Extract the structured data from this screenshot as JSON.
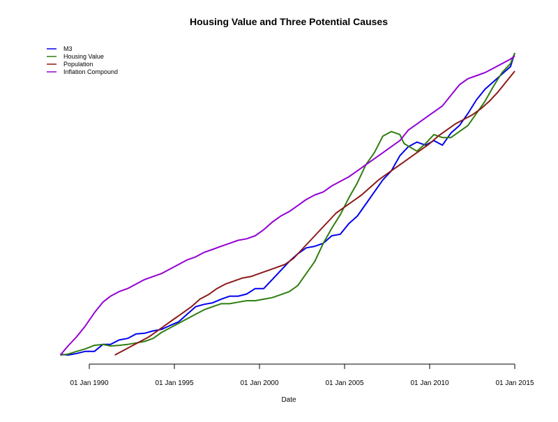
{
  "chart_data": {
    "type": "line",
    "title": "Housing Value and Three Potential Causes",
    "xlabel": "Date",
    "ylabel": "",
    "grid": false,
    "legend_position": "top-left",
    "x_ticks": [
      "01 Jan 1990",
      "01 Jan 1995",
      "01 Jan 2000",
      "01 Jan 2005",
      "01 Jan 2010",
      "01 Jan 2015"
    ],
    "x_tick_values": [
      1990.0,
      1995.0,
      2000.0,
      2005.0,
      2010.0,
      2015.0
    ],
    "xlim": [
      1988.3,
      2015.0
    ],
    "ylim": [
      0,
      100
    ],
    "y_axis_shown": false,
    "series": [
      {
        "name": "M3",
        "color": "#0000ee",
        "points": [
          [
            1988.3,
            0.3
          ],
          [
            1988.75,
            0.0
          ],
          [
            1989.25,
            0.5
          ],
          [
            1989.75,
            1.2
          ],
          [
            1990.3,
            1.2
          ],
          [
            1990.8,
            3.5
          ],
          [
            1991.25,
            3.5
          ],
          [
            1991.75,
            5.0
          ],
          [
            1992.25,
            5.5
          ],
          [
            1992.75,
            7.0
          ],
          [
            1993.25,
            7.2
          ],
          [
            1993.75,
            8.0
          ],
          [
            1994.25,
            8.5
          ],
          [
            1994.75,
            9.8
          ],
          [
            1995.25,
            11.0
          ],
          [
            1995.75,
            13.5
          ],
          [
            1996.25,
            16.0
          ],
          [
            1996.75,
            16.8
          ],
          [
            1997.25,
            17.3
          ],
          [
            1997.75,
            18.5
          ],
          [
            1998.25,
            19.5
          ],
          [
            1998.75,
            19.5
          ],
          [
            1999.25,
            20.2
          ],
          [
            1999.75,
            22.0
          ],
          [
            2000.25,
            22.0
          ],
          [
            2000.75,
            25.0
          ],
          [
            2001.25,
            28.0
          ],
          [
            2001.75,
            31.0
          ],
          [
            2002.25,
            33.5
          ],
          [
            2002.75,
            35.5
          ],
          [
            2003.25,
            36.0
          ],
          [
            2003.75,
            37.0
          ],
          [
            2004.25,
            39.5
          ],
          [
            2004.75,
            40.0
          ],
          [
            2005.25,
            43.5
          ],
          [
            2005.75,
            46.0
          ],
          [
            2006.25,
            50.0
          ],
          [
            2006.75,
            54.0
          ],
          [
            2007.25,
            58.0
          ],
          [
            2007.75,
            61.0
          ],
          [
            2008.25,
            66.0
          ],
          [
            2008.75,
            69.0
          ],
          [
            2009.25,
            70.5
          ],
          [
            2009.75,
            69.5
          ],
          [
            2010.25,
            71.0
          ],
          [
            2010.75,
            69.5
          ],
          [
            2011.25,
            73.5
          ],
          [
            2011.75,
            76.0
          ],
          [
            2012.25,
            80.0
          ],
          [
            2012.75,
            84.5
          ],
          [
            2013.25,
            88.0
          ],
          [
            2013.75,
            90.5
          ],
          [
            2014.25,
            93.0
          ],
          [
            2014.75,
            95.5
          ],
          [
            2015.0,
            100.0
          ]
        ]
      },
      {
        "name": "Housing Value",
        "color": "#2e7d0f",
        "points": [
          [
            1988.3,
            0.0
          ],
          [
            1988.75,
            0.3
          ],
          [
            1989.25,
            1.2
          ],
          [
            1989.75,
            2.0
          ],
          [
            1990.3,
            3.2
          ],
          [
            1990.8,
            3.5
          ],
          [
            1991.25,
            3.0
          ],
          [
            1991.75,
            3.2
          ],
          [
            1992.25,
            3.5
          ],
          [
            1992.75,
            4.0
          ],
          [
            1993.25,
            4.5
          ],
          [
            1993.75,
            5.5
          ],
          [
            1994.25,
            7.5
          ],
          [
            1994.75,
            9.0
          ],
          [
            1995.25,
            10.5
          ],
          [
            1995.75,
            12.0
          ],
          [
            1996.25,
            13.5
          ],
          [
            1996.75,
            15.0
          ],
          [
            1997.25,
            16.0
          ],
          [
            1997.75,
            17.0
          ],
          [
            1998.25,
            17.0
          ],
          [
            1998.75,
            17.5
          ],
          [
            1999.25,
            18.0
          ],
          [
            1999.75,
            18.0
          ],
          [
            2000.25,
            18.5
          ],
          [
            2000.75,
            19.0
          ],
          [
            2001.25,
            20.0
          ],
          [
            2001.75,
            21.0
          ],
          [
            2002.25,
            23.0
          ],
          [
            2002.75,
            27.0
          ],
          [
            2003.25,
            31.0
          ],
          [
            2003.75,
            37.0
          ],
          [
            2004.25,
            42.0
          ],
          [
            2004.75,
            46.5
          ],
          [
            2005.25,
            52.0
          ],
          [
            2005.75,
            57.0
          ],
          [
            2006.25,
            63.0
          ],
          [
            2006.75,
            67.0
          ],
          [
            2007.25,
            72.5
          ],
          [
            2007.75,
            74.0
          ],
          [
            2008.25,
            73.0
          ],
          [
            2008.5,
            70.0
          ],
          [
            2009.25,
            67.5
          ],
          [
            2009.75,
            70.0
          ],
          [
            2010.25,
            73.0
          ],
          [
            2010.75,
            72.0
          ],
          [
            2011.25,
            72.0
          ],
          [
            2011.75,
            74.0
          ],
          [
            2012.25,
            76.0
          ],
          [
            2012.75,
            80.0
          ],
          [
            2013.25,
            84.0
          ],
          [
            2013.75,
            89.0
          ],
          [
            2014.25,
            93.5
          ],
          [
            2014.75,
            96.5
          ],
          [
            2015.0,
            100.0
          ]
        ]
      },
      {
        "name": "Population",
        "color": "#8b1a1a",
        "points": [
          [
            1991.5,
            0.0
          ],
          [
            1992.0,
            1.5
          ],
          [
            1992.5,
            3.0
          ],
          [
            1993.0,
            4.5
          ],
          [
            1993.5,
            6.0
          ],
          [
            1994.0,
            8.0
          ],
          [
            1994.5,
            10.0
          ],
          [
            1995.0,
            12.0
          ],
          [
            1995.5,
            14.0
          ],
          [
            1996.0,
            16.0
          ],
          [
            1996.5,
            18.5
          ],
          [
            1997.0,
            20.0
          ],
          [
            1997.5,
            22.0
          ],
          [
            1998.0,
            23.5
          ],
          [
            1998.5,
            24.5
          ],
          [
            1999.0,
            25.5
          ],
          [
            1999.5,
            26.0
          ],
          [
            2000.0,
            27.0
          ],
          [
            2000.5,
            28.0
          ],
          [
            2001.0,
            29.0
          ],
          [
            2001.5,
            30.0
          ],
          [
            2002.0,
            32.0
          ],
          [
            2002.5,
            35.0
          ],
          [
            2003.0,
            38.0
          ],
          [
            2003.5,
            41.0
          ],
          [
            2004.0,
            44.0
          ],
          [
            2004.5,
            47.0
          ],
          [
            2005.0,
            49.0
          ],
          [
            2005.5,
            51.0
          ],
          [
            2006.0,
            53.0
          ],
          [
            2006.5,
            55.5
          ],
          [
            2007.0,
            58.0
          ],
          [
            2007.5,
            60.0
          ],
          [
            2008.0,
            62.0
          ],
          [
            2008.5,
            64.0
          ],
          [
            2009.0,
            66.0
          ],
          [
            2009.5,
            68.0
          ],
          [
            2010.0,
            70.0
          ],
          [
            2010.5,
            72.5
          ],
          [
            2011.0,
            74.5
          ],
          [
            2011.5,
            76.5
          ],
          [
            2012.0,
            78.0
          ],
          [
            2012.5,
            79.5
          ],
          [
            2013.0,
            81.5
          ],
          [
            2013.5,
            84.0
          ],
          [
            2014.0,
            87.0
          ],
          [
            2014.5,
            90.5
          ],
          [
            2015.0,
            94.0
          ]
        ]
      },
      {
        "name": "Inflation Compound",
        "color": "#9400d3",
        "points": [
          [
            1988.3,
            0.0
          ],
          [
            1988.75,
            3.0
          ],
          [
            1989.25,
            6.0
          ],
          [
            1989.75,
            9.5
          ],
          [
            1990.3,
            14.0
          ],
          [
            1990.8,
            17.5
          ],
          [
            1991.25,
            19.5
          ],
          [
            1991.75,
            21.0
          ],
          [
            1992.25,
            22.0
          ],
          [
            1992.75,
            23.5
          ],
          [
            1993.25,
            25.0
          ],
          [
            1993.75,
            26.0
          ],
          [
            1994.25,
            27.0
          ],
          [
            1994.75,
            28.5
          ],
          [
            1995.25,
            30.0
          ],
          [
            1995.75,
            31.5
          ],
          [
            1996.25,
            32.5
          ],
          [
            1996.75,
            34.0
          ],
          [
            1997.25,
            35.0
          ],
          [
            1997.75,
            36.0
          ],
          [
            1998.25,
            37.0
          ],
          [
            1998.75,
            38.0
          ],
          [
            1999.25,
            38.5
          ],
          [
            1999.75,
            39.5
          ],
          [
            2000.25,
            41.5
          ],
          [
            2000.75,
            44.0
          ],
          [
            2001.25,
            46.0
          ],
          [
            2001.75,
            47.5
          ],
          [
            2002.25,
            49.5
          ],
          [
            2002.75,
            51.5
          ],
          [
            2003.25,
            53.0
          ],
          [
            2003.75,
            54.0
          ],
          [
            2004.25,
            56.0
          ],
          [
            2004.75,
            57.5
          ],
          [
            2005.25,
            59.0
          ],
          [
            2005.75,
            61.0
          ],
          [
            2006.25,
            63.0
          ],
          [
            2006.75,
            65.0
          ],
          [
            2007.25,
            67.0
          ],
          [
            2007.75,
            69.0
          ],
          [
            2008.25,
            71.0
          ],
          [
            2008.75,
            74.5
          ],
          [
            2009.25,
            76.5
          ],
          [
            2009.75,
            78.5
          ],
          [
            2010.25,
            80.5
          ],
          [
            2010.75,
            82.5
          ],
          [
            2011.25,
            86.0
          ],
          [
            2011.75,
            89.5
          ],
          [
            2012.25,
            91.5
          ],
          [
            2012.75,
            92.5
          ],
          [
            2013.25,
            93.5
          ],
          [
            2013.75,
            95.0
          ],
          [
            2014.25,
            96.5
          ],
          [
            2014.75,
            98.0
          ],
          [
            2015.0,
            99.0
          ]
        ]
      }
    ]
  }
}
